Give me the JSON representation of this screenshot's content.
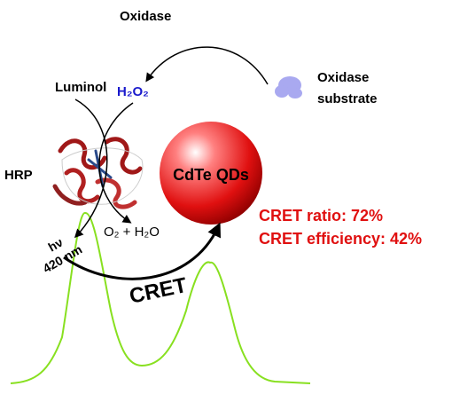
{
  "labels": {
    "oxidase": "Oxidase",
    "luminol": "Luminol",
    "h2o2": "H₂O₂",
    "substrate": [
      "Oxidase",
      "substrate"
    ],
    "hrp": "HRP",
    "qds": "CdTe QDs",
    "cret_ratio": "CRET ratio: 72%",
    "cret_efficiency": "CRET efficiency: 42%",
    "hv": "hν",
    "wavelength": "420 nm",
    "products": "O₂ + H₂O",
    "cret": "CRET"
  }
}
